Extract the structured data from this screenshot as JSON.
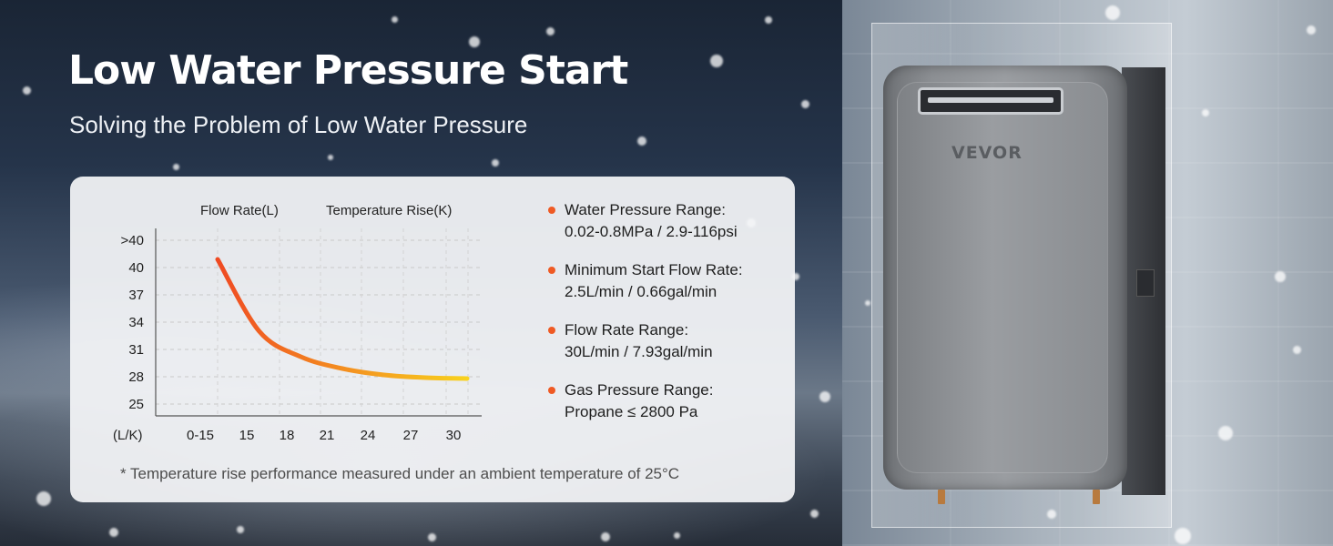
{
  "header": {
    "title": "Low Water Pressure Start",
    "subtitle": "Solving the Problem of Low Water Pressure"
  },
  "chart_data": {
    "type": "line",
    "series": [
      {
        "name": "Temperature Rise(K)",
        "x": [
          0,
          1,
          2,
          3,
          4,
          5,
          6
        ],
        "values": [
          40.3,
          33,
          30.2,
          28.9,
          28.2,
          27.9,
          27.8
        ]
      }
    ],
    "series_labels": [
      "Flow Rate(L)",
      "Temperature Rise(K)"
    ],
    "x_tick_labels": [
      "0-15",
      "15",
      "18",
      "21",
      "24",
      "27",
      "30"
    ],
    "y_tick_labels": [
      ">40",
      "40",
      "37",
      "34",
      "31",
      "28",
      "25"
    ],
    "y_tick_values": [
      41,
      40,
      37,
      34,
      31,
      28,
      25
    ],
    "y_unit_label": "(L/K)",
    "ylim": [
      25,
      41
    ],
    "grid": true,
    "line_color_start": "#ef4a22",
    "line_color_end": "#f8d21e"
  },
  "specs": [
    {
      "label": "Water Pressure Range:",
      "value": "0.02-0.8MPa / 2.9-116psi"
    },
    {
      "label": "Minimum Start Flow Rate:",
      "value": "2.5L/min / 0.66gal/min"
    },
    {
      "label": "Flow Rate Range:",
      "value": "30L/min / 7.93gal/min"
    },
    {
      "label": "Gas Pressure Range:",
      "value": "Propane ≤ 2800 Pa"
    }
  ],
  "footnote": "* Temperature rise performance measured under an ambient temperature of 25°C",
  "product": {
    "brand": "VEVOR"
  },
  "colors": {
    "accent": "#ef5a24",
    "panel": "#f4f5f7"
  }
}
